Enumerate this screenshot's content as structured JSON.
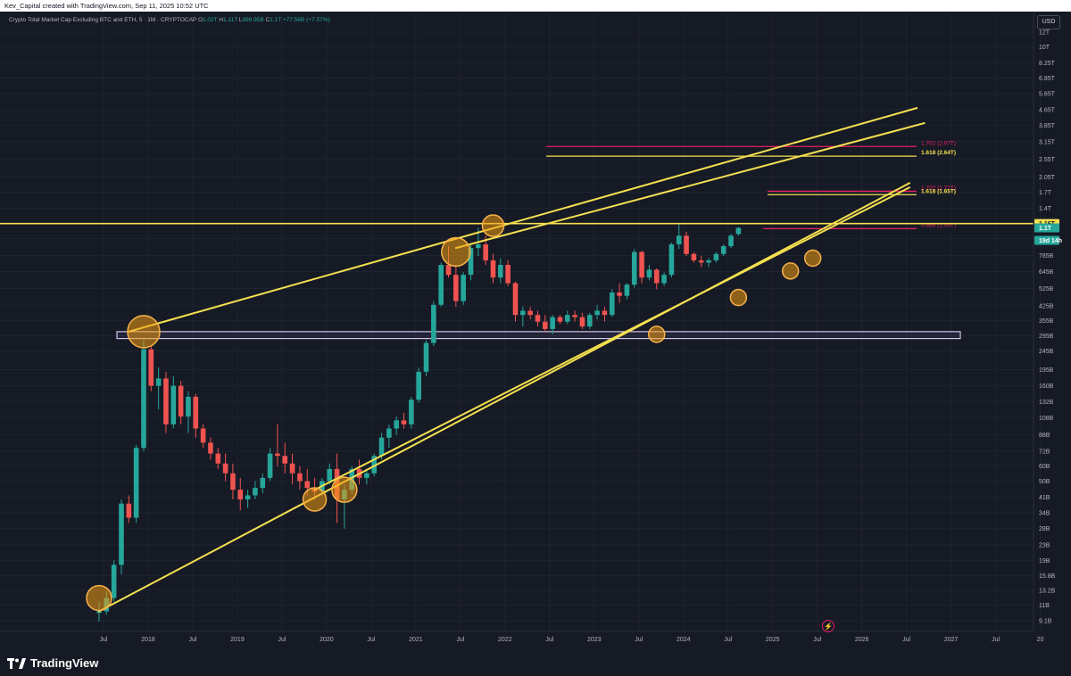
{
  "header": {
    "text": "Kev_Capital created with TradingView.com, Sep 11, 2025 10:52 UTC"
  },
  "legend": {
    "title": "Crypto Total Market Cap Excluding BTC and ETH, 5 · 1M · CRYPTOCAP",
    "o_label": "O",
    "o_value": "1.02T",
    "h_label": "H",
    "h_value": "1.11T",
    "l_label": "L",
    "l_value": "999.95B",
    "c_label": "C",
    "c_value": "1.1T",
    "change": "+77.56B (+7.57%)"
  },
  "currency": "USD",
  "brand": "TradingView",
  "colors": {
    "background": "#161a25",
    "up": "#26a69a",
    "down": "#ef5350",
    "trendline": "#f5e050",
    "circle": "#f39c12",
    "fib_red": "#e91e63",
    "support_band": "#d1c4e9"
  },
  "chart_data": {
    "type": "candlestick",
    "title": "Crypto Total Market Cap Excluding BTC and ETH, 5 · 1M · CRYPTOCAP",
    "y_scale": "log",
    "y_ticks": [
      "12T",
      "10T",
      "8.25T",
      "6.85T",
      "5.65T",
      "4.65T",
      "3.85T",
      "3.15T",
      "2.55T",
      "2.05T",
      "1.7T",
      "1.4T",
      "965B",
      "785B",
      "645B",
      "525B",
      "425B",
      "355B",
      "295B",
      "245B",
      "195B",
      "160B",
      "132B",
      "108B",
      "88B",
      "72B",
      "60B",
      "50B",
      "41B",
      "34B",
      "28B",
      "23B",
      "19B",
      "15.8B",
      "13.2B",
      "11B",
      "9.1B"
    ],
    "y_tick_values": [
      12000,
      10000,
      8250,
      6850,
      5650,
      4650,
      3850,
      3150,
      2550,
      2050,
      1700,
      1400,
      965,
      785,
      645,
      525,
      425,
      355,
      295,
      245,
      195,
      160,
      132,
      108,
      88,
      72,
      60,
      50,
      41,
      34,
      28,
      23,
      19,
      15.8,
      13.2,
      11,
      9.1
    ],
    "x_ticks": [
      "Jul",
      "2018",
      "Jul",
      "2019",
      "Jul",
      "2020",
      "Jul",
      "2021",
      "Jul",
      "2022",
      "Jul",
      "2023",
      "Jul",
      "2024",
      "Jul",
      "2025",
      "Jul",
      "2026",
      "Jul",
      "2027",
      "Jul",
      "20"
    ],
    "price_labels": [
      {
        "text": "1.16T",
        "value": 1160,
        "style": "yellow"
      },
      {
        "text": "1.1T",
        "value": 1100,
        "style": "green"
      },
      {
        "text": "19d 14h",
        "value": 1020,
        "style": "green"
      }
    ],
    "candles": [
      [
        10,
        11.5,
        9.0,
        10.2
      ],
      [
        10.2,
        13,
        9.8,
        12
      ],
      [
        12,
        19,
        11.5,
        18
      ],
      [
        18,
        40,
        16,
        38
      ],
      [
        38,
        42,
        30,
        32
      ],
      [
        32,
        78,
        30,
        75
      ],
      [
        75,
        280,
        72,
        250
      ],
      [
        250,
        260,
        150,
        160
      ],
      [
        160,
        200,
        120,
        175
      ],
      [
        175,
        190,
        90,
        100
      ],
      [
        100,
        180,
        95,
        160
      ],
      [
        160,
        170,
        100,
        110
      ],
      [
        110,
        150,
        90,
        140
      ],
      [
        140,
        145,
        85,
        95
      ],
      [
        95,
        100,
        75,
        80
      ],
      [
        80,
        85,
        65,
        70
      ],
      [
        70,
        75,
        58,
        62
      ],
      [
        62,
        70,
        50,
        55
      ],
      [
        55,
        62,
        40,
        45
      ],
      [
        45,
        52,
        35,
        40
      ],
      [
        40,
        45,
        36,
        42
      ],
      [
        42,
        50,
        40,
        46
      ],
      [
        46,
        55,
        43,
        52
      ],
      [
        52,
        75,
        50,
        70
      ],
      [
        70,
        100,
        60,
        68
      ],
      [
        68,
        80,
        55,
        62
      ],
      [
        62,
        70,
        48,
        55
      ],
      [
        55,
        60,
        45,
        50
      ],
      [
        50,
        58,
        42,
        46
      ],
      [
        46,
        52,
        40,
        44
      ],
      [
        44,
        52,
        42,
        50
      ],
      [
        50,
        62,
        48,
        58
      ],
      [
        58,
        70,
        30,
        40
      ],
      [
        40,
        48,
        28,
        45
      ],
      [
        45,
        60,
        43,
        58
      ],
      [
        58,
        65,
        48,
        52
      ],
      [
        52,
        58,
        48,
        55
      ],
      [
        55,
        70,
        53,
        68
      ],
      [
        68,
        90,
        65,
        85
      ],
      [
        85,
        100,
        75,
        95
      ],
      [
        95,
        110,
        88,
        105
      ],
      [
        105,
        115,
        95,
        100
      ],
      [
        100,
        140,
        95,
        135
      ],
      [
        135,
        200,
        130,
        190
      ],
      [
        190,
        280,
        180,
        270
      ],
      [
        270,
        450,
        260,
        430
      ],
      [
        430,
        720,
        420,
        700
      ],
      [
        700,
        880,
        600,
        620
      ],
      [
        620,
        700,
        420,
        450
      ],
      [
        450,
        640,
        430,
        620
      ],
      [
        620,
        900,
        580,
        860
      ],
      [
        860,
        1100,
        780,
        900
      ],
      [
        900,
        1000,
        700,
        740
      ],
      [
        740,
        800,
        560,
        600
      ],
      [
        600,
        760,
        560,
        700
      ],
      [
        700,
        740,
        540,
        560
      ],
      [
        560,
        570,
        350,
        380
      ],
      [
        380,
        420,
        330,
        400
      ],
      [
        400,
        420,
        360,
        380
      ],
      [
        380,
        400,
        330,
        350
      ],
      [
        350,
        380,
        310,
        320
      ],
      [
        320,
        380,
        300,
        370
      ],
      [
        370,
        380,
        340,
        350
      ],
      [
        350,
        400,
        340,
        380
      ],
      [
        380,
        400,
        350,
        370
      ],
      [
        370,
        390,
        320,
        330
      ],
      [
        330,
        390,
        320,
        380
      ],
      [
        380,
        430,
        360,
        400
      ],
      [
        400,
        420,
        350,
        380
      ],
      [
        380,
        520,
        370,
        500
      ],
      [
        500,
        560,
        440,
        480
      ],
      [
        480,
        560,
        460,
        550
      ],
      [
        550,
        850,
        530,
        820
      ],
      [
        820,
        830,
        560,
        600
      ],
      [
        600,
        700,
        580,
        660
      ],
      [
        660,
        670,
        520,
        560
      ],
      [
        560,
        640,
        540,
        620
      ],
      [
        620,
        920,
        600,
        900
      ],
      [
        900,
        1150,
        850,
        1000
      ],
      [
        1000,
        1050,
        780,
        800
      ],
      [
        800,
        820,
        720,
        740
      ],
      [
        740,
        780,
        680,
        720
      ],
      [
        720,
        760,
        680,
        740
      ],
      [
        740,
        820,
        720,
        800
      ],
      [
        800,
        900,
        780,
        880
      ],
      [
        880,
        1020,
        860,
        1000
      ],
      [
        1020,
        1110,
        1000,
        1100
      ]
    ],
    "annotations": {
      "fib_levels": [
        {
          "label": "1.702 (2.97T)",
          "value": 2970,
          "color": "#e91e63"
        },
        {
          "label": "1.618 (2.64T)",
          "value": 2640,
          "color": "#f5e050"
        },
        {
          "label": "1.702 (1.72T)",
          "value": 1720,
          "color": "#e91e63"
        },
        {
          "label": "1.618 (1.65T)",
          "value": 1650,
          "color": "#f5e050"
        },
        {
          "label": "0.886 (1.09T)",
          "value": 1090,
          "color": "#e91e63"
        }
      ],
      "horizontal_line": {
        "value": 1160
      },
      "support_band": {
        "low": 285,
        "high": 310
      },
      "trendlines": [
        {
          "from": [
            "2017-06",
            10.2
          ],
          "to": [
            "2026-07",
            1900
          ]
        },
        {
          "from": [
            "2019-11",
            45
          ],
          "to": [
            "2026-07",
            1800
          ]
        },
        {
          "from": [
            "2017-10",
            310
          ],
          "to": [
            "2026-08",
            4750
          ]
        },
        {
          "from": [
            "2021-06",
            860
          ],
          "to": [
            "2026-09",
            3950
          ]
        }
      ],
      "touch_circles": [
        "2017-06",
        "2017-12",
        "2019-11",
        "2020-03",
        "2021-06",
        "2021-11",
        "2023-09",
        "2024-08",
        "2025-03",
        "2025-06"
      ]
    }
  }
}
